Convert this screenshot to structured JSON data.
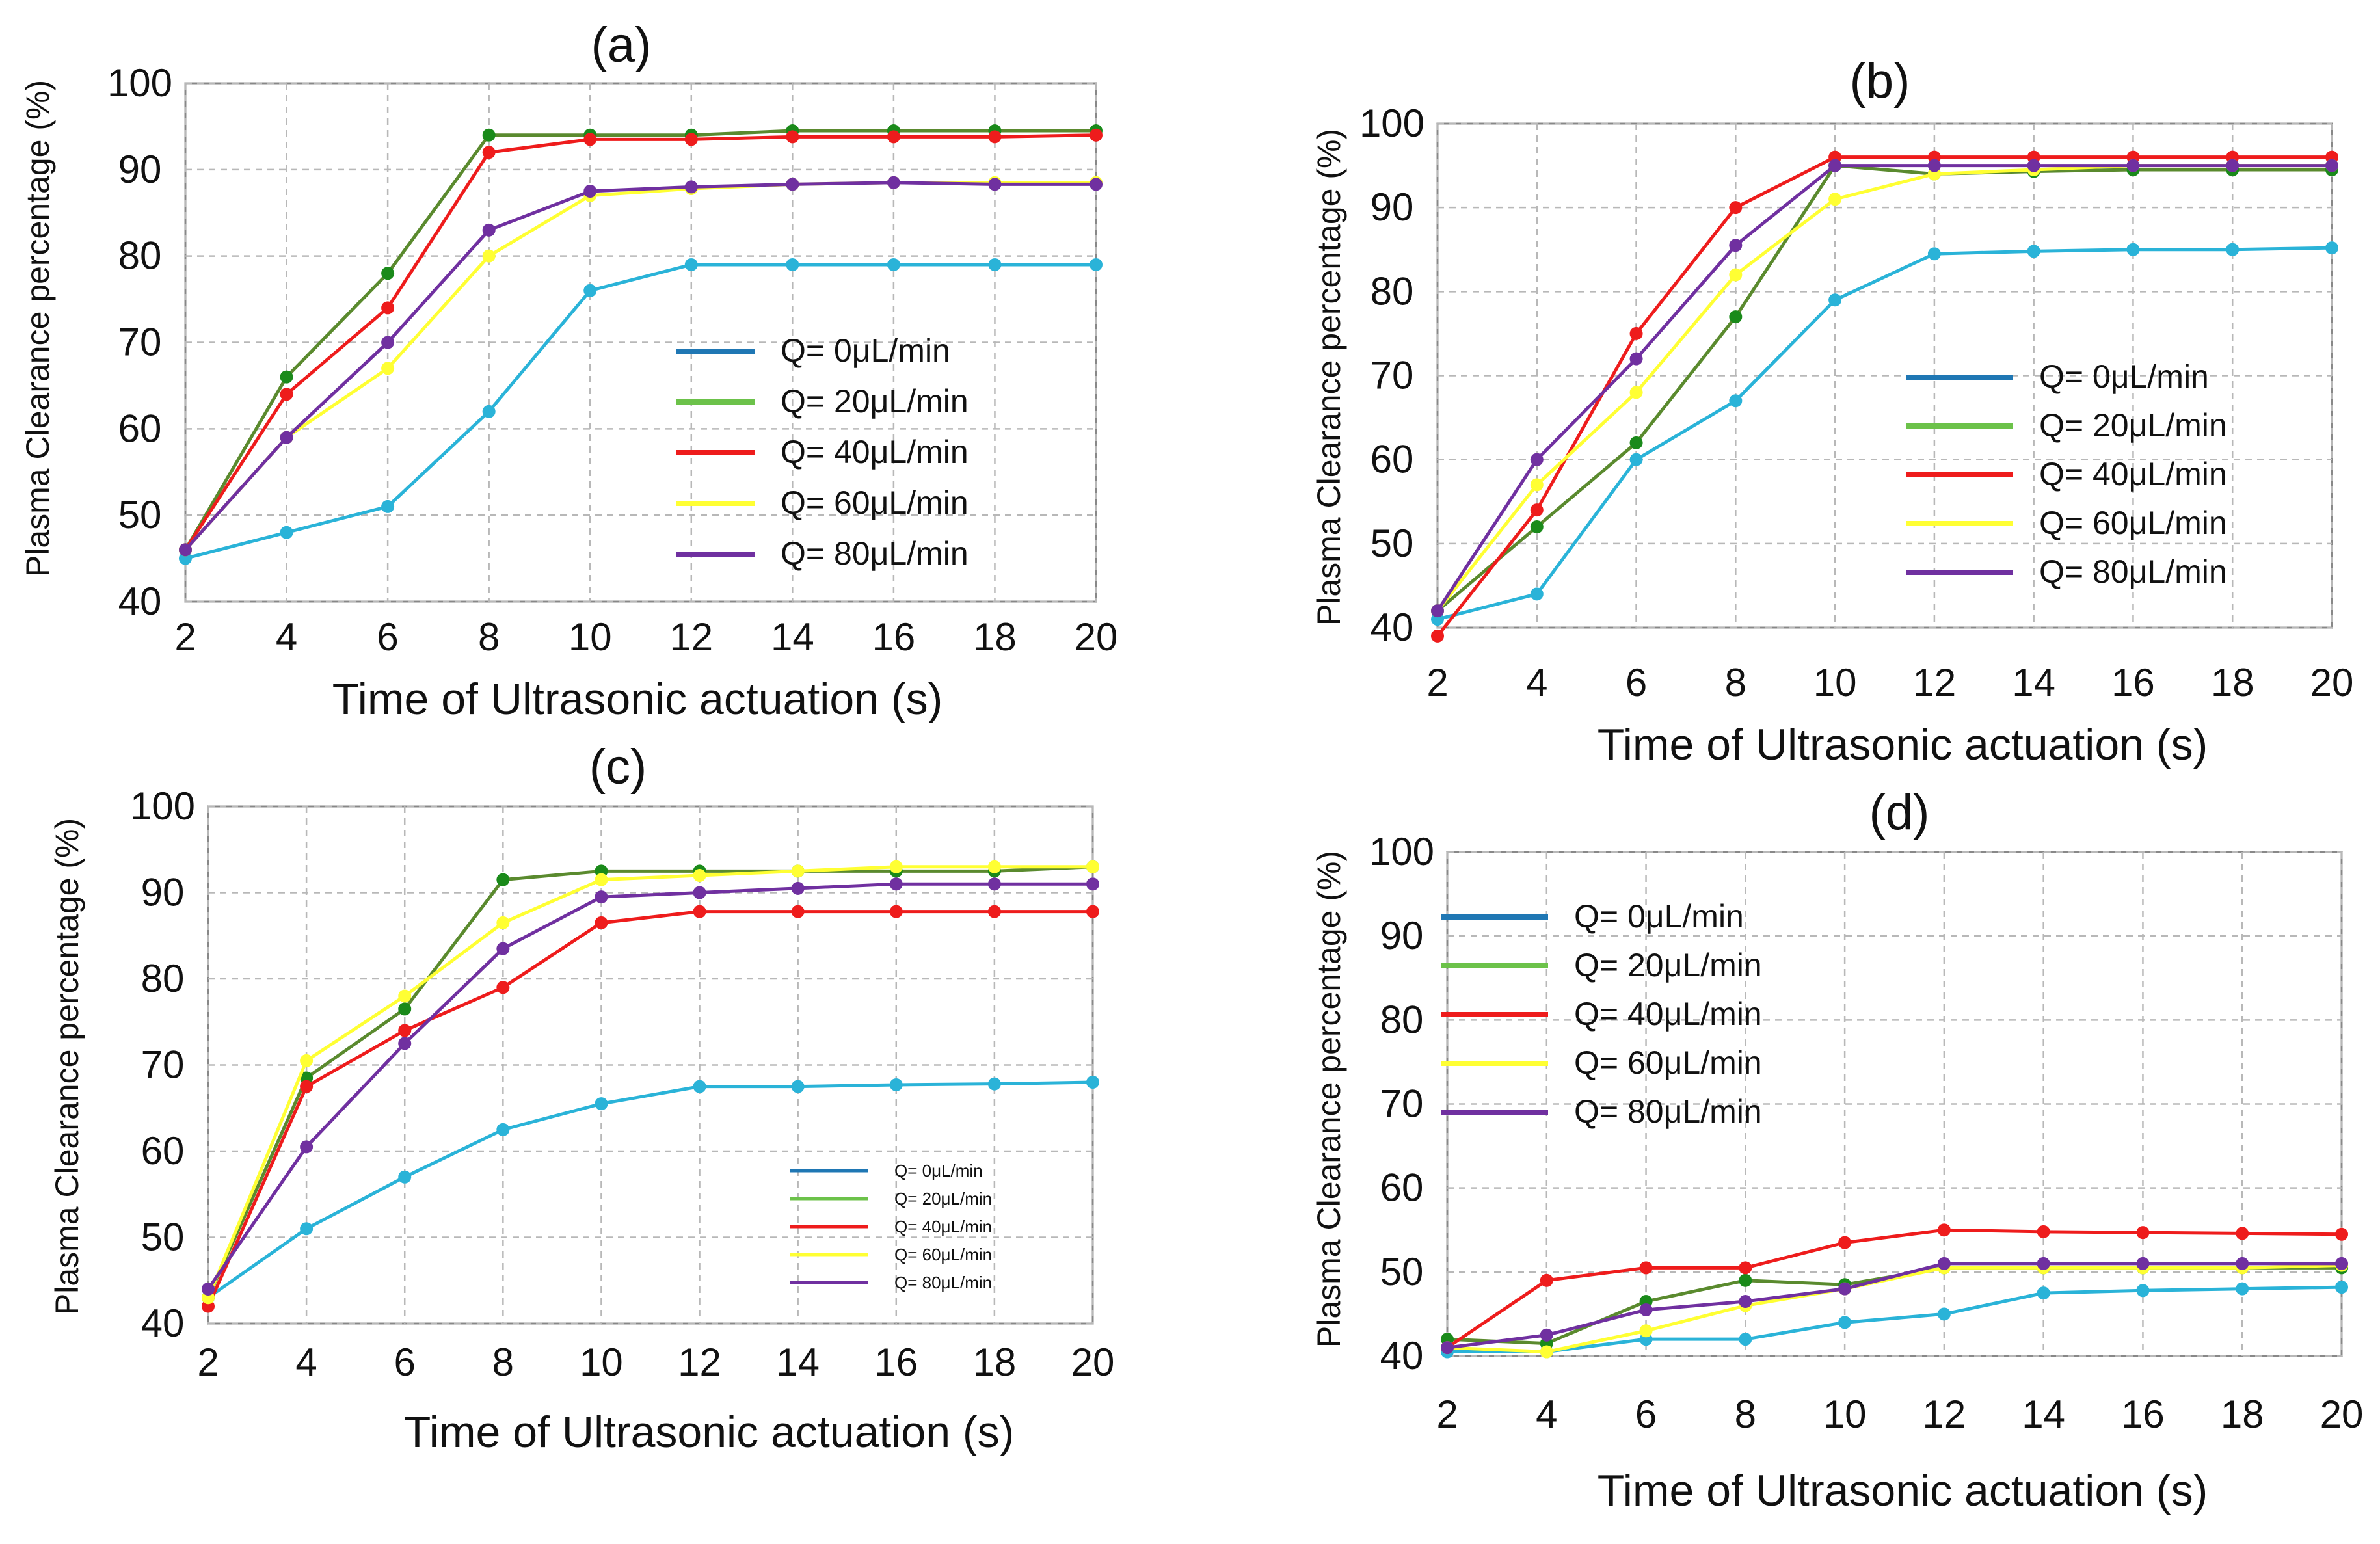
{
  "figure": {
    "x_ticks": [
      "2",
      "4",
      "6",
      "8",
      "10",
      "12",
      "14",
      "16",
      "18",
      "20"
    ],
    "y_ticks": [
      "40",
      "50",
      "60",
      "70",
      "80",
      "90",
      "100"
    ],
    "series_names": [
      "Q= 0μL/min",
      "Q= 20μL/min",
      "Q= 40μL/min",
      "Q= 60μL/min",
      "Q= 80μL/min"
    ],
    "series_colors": [
      "#1f77b4",
      "#6cc24a",
      "#ee1c1c",
      "#ffff33",
      "#7030a0"
    ],
    "curve_colors": [
      "#2ab3d8",
      "#5a8a2e",
      "#ee1c1c",
      "#ffff33",
      "#7030a0"
    ],
    "grid_color": "#b8b8b8",
    "point_colors": [
      "#2ab3d8",
      "#1a8a1a",
      "#ee1c1c",
      "#ffff33",
      "#7030a0"
    ]
  },
  "chart_data": [
    {
      "panel": "(a)",
      "type": "line",
      "title": "(a)",
      "xlabel": "Time of Ultrasonic actuation (s)",
      "ylabel": "Plasma Clearance  percentage (%)",
      "x": [
        2,
        4,
        6,
        8,
        10,
        12,
        14,
        16,
        18,
        20
      ],
      "xlim": [
        2,
        20
      ],
      "ylim": [
        40,
        100
      ],
      "legend_position": "center-right",
      "series": [
        {
          "name": "Q= 0μL/min",
          "values": [
            45,
            48,
            51,
            62,
            76,
            79,
            79,
            79,
            79,
            79
          ]
        },
        {
          "name": "Q= 20μL/min",
          "values": [
            46,
            66,
            78,
            94,
            94,
            94,
            94.5,
            94.5,
            94.5,
            94.5
          ]
        },
        {
          "name": "Q= 40μL/min",
          "values": [
            46,
            64,
            74,
            92,
            93.5,
            93.5,
            93.8,
            93.8,
            93.8,
            94
          ]
        },
        {
          "name": "Q= 60μL/min",
          "values": [
            46,
            59,
            67,
            80,
            87,
            87.8,
            88.3,
            88.5,
            88.5,
            88.5
          ]
        },
        {
          "name": "Q= 80μL/min",
          "values": [
            46,
            59,
            70,
            83,
            87.5,
            88,
            88.3,
            88.5,
            88.3,
            88.3
          ]
        }
      ]
    },
    {
      "panel": "(b)",
      "type": "line",
      "title": "(b)",
      "xlabel": "Time of Ultrasonic actuation (s)",
      "ylabel": "Plasma Clearance  percentage (%)",
      "x": [
        2,
        4,
        6,
        8,
        10,
        12,
        14,
        16,
        18,
        20
      ],
      "xlim": [
        2,
        20
      ],
      "ylim": [
        40,
        100
      ],
      "legend_position": "center-right",
      "series": [
        {
          "name": "Q= 0μL/min",
          "values": [
            41,
            44,
            60,
            67,
            79,
            84.5,
            84.8,
            85,
            85,
            85.2
          ]
        },
        {
          "name": "Q= 20μL/min",
          "values": [
            42,
            52,
            62,
            77,
            95,
            94,
            94.3,
            94.5,
            94.5,
            94.5
          ]
        },
        {
          "name": "Q= 40μL/min",
          "values": [
            39,
            54,
            75,
            90,
            96,
            96,
            96,
            96,
            96,
            96
          ]
        },
        {
          "name": "Q= 60μL/min",
          "values": [
            42,
            57,
            68,
            82,
            91,
            94,
            94.5,
            95,
            95,
            95
          ]
        },
        {
          "name": "Q= 80μL/min",
          "values": [
            42,
            60,
            72,
            85.5,
            95,
            95,
            95,
            95,
            95,
            95
          ]
        }
      ]
    },
    {
      "panel": "(c)",
      "type": "line",
      "title": "(c)",
      "xlabel": "Time of Ultrasonic actuation (s)",
      "ylabel": "Plasma Clearance  percentage (%)",
      "x": [
        2,
        4,
        6,
        8,
        10,
        12,
        14,
        16,
        18,
        20
      ],
      "xlim": [
        2,
        20
      ],
      "ylim": [
        40,
        100
      ],
      "legend_position": "bottom-right",
      "series": [
        {
          "name": "Q= 0μL/min",
          "values": [
            43,
            51,
            57,
            62.5,
            65.5,
            67.5,
            67.5,
            67.7,
            67.8,
            68
          ]
        },
        {
          "name": "Q= 20μL/min",
          "values": [
            43,
            68.5,
            76.5,
            91.5,
            92.5,
            92.5,
            92.5,
            92.5,
            92.5,
            93
          ]
        },
        {
          "name": "Q= 40μL/min",
          "values": [
            42,
            67.5,
            74,
            79,
            86.5,
            87.8,
            87.8,
            87.8,
            87.8,
            87.8
          ]
        },
        {
          "name": "Q= 60μL/min",
          "values": [
            43,
            70.5,
            78,
            86.5,
            91.5,
            92,
            92.5,
            93,
            93,
            93
          ]
        },
        {
          "name": "Q= 80μL/min",
          "values": [
            44,
            60.5,
            72.5,
            83.5,
            89.5,
            90,
            90.5,
            91,
            91,
            91
          ]
        }
      ]
    },
    {
      "panel": "(d)",
      "type": "line",
      "title": "(d)",
      "xlabel": "Time of Ultrasonic actuation (s)",
      "ylabel": "Plasma Clearance  percentage (%)",
      "x": [
        2,
        4,
        6,
        8,
        10,
        12,
        14,
        16,
        18,
        20
      ],
      "xlim": [
        2,
        20
      ],
      "ylim": [
        40,
        100
      ],
      "legend_position": "top-left",
      "series": [
        {
          "name": "Q= 0μL/min",
          "values": [
            40.5,
            40.5,
            42,
            42,
            44,
            45,
            47.5,
            47.8,
            48,
            48.2
          ]
        },
        {
          "name": "Q= 20μL/min",
          "values": [
            42,
            41.5,
            46.5,
            49,
            48.5,
            50.5,
            50.5,
            50.5,
            50.5,
            50.5
          ]
        },
        {
          "name": "Q= 40μL/min",
          "values": [
            41,
            49,
            50.5,
            50.5,
            53.5,
            55,
            54.8,
            54.7,
            54.6,
            54.5
          ]
        },
        {
          "name": "Q= 60μL/min",
          "values": [
            41,
            40.5,
            43,
            46,
            48,
            50.5,
            50.5,
            50.5,
            50.5,
            50.8
          ]
        },
        {
          "name": "Q= 80μL/min",
          "values": [
            41,
            42.5,
            45.5,
            46.5,
            48,
            51,
            51,
            51,
            51,
            51
          ]
        }
      ]
    }
  ]
}
